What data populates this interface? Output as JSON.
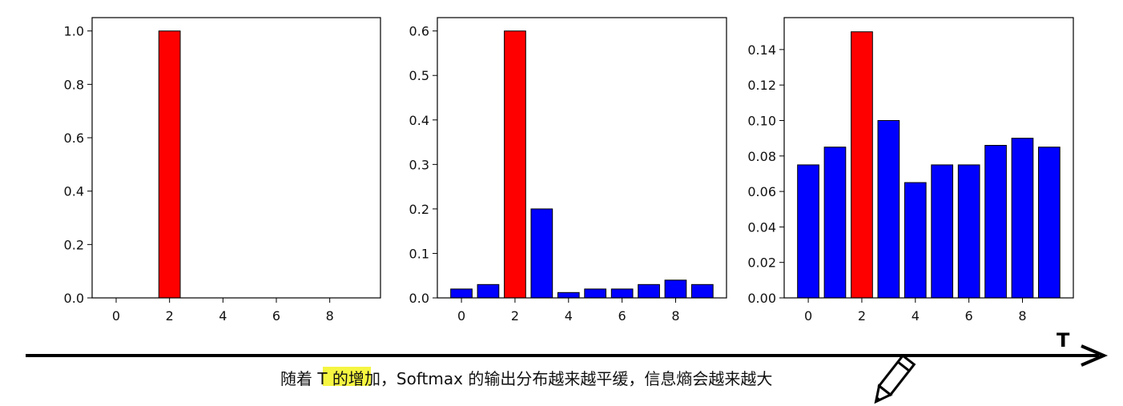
{
  "chart_data": [
    {
      "type": "bar",
      "x": [
        0,
        1,
        2,
        3,
        4,
        5,
        6,
        7,
        8,
        9
      ],
      "values": [
        0,
        0,
        1.0,
        0,
        0,
        0,
        0,
        0,
        0,
        0
      ],
      "highlight_index": 2,
      "xticks": [
        "0",
        "2",
        "4",
        "6",
        "8"
      ],
      "yticks": [
        "0.0",
        "0.2",
        "0.4",
        "0.6",
        "0.8",
        "1.0"
      ],
      "ytick_values": [
        0,
        0.2,
        0.4,
        0.6,
        0.8,
        1.0
      ],
      "xlim": [
        -0.9,
        9.9
      ],
      "ylim": [
        0,
        1.05
      ],
      "grid": false
    },
    {
      "type": "bar",
      "x": [
        0,
        1,
        2,
        3,
        4,
        5,
        6,
        7,
        8,
        9
      ],
      "values": [
        0.02,
        0.03,
        0.6,
        0.2,
        0.012,
        0.02,
        0.02,
        0.03,
        0.04,
        0.03
      ],
      "highlight_index": 2,
      "xticks": [
        "0",
        "2",
        "4",
        "6",
        "8"
      ],
      "yticks": [
        "0.0",
        "0.1",
        "0.2",
        "0.3",
        "0.4",
        "0.5",
        "0.6"
      ],
      "ytick_values": [
        0,
        0.1,
        0.2,
        0.3,
        0.4,
        0.5,
        0.6
      ],
      "xlim": [
        -0.9,
        9.9
      ],
      "ylim": [
        0,
        0.63
      ],
      "grid": false
    },
    {
      "type": "bar",
      "x": [
        0,
        1,
        2,
        3,
        4,
        5,
        6,
        7,
        8,
        9
      ],
      "values": [
        0.075,
        0.085,
        0.15,
        0.1,
        0.065,
        0.075,
        0.075,
        0.086,
        0.09,
        0.085
      ],
      "highlight_index": 2,
      "xticks": [
        "0",
        "2",
        "4",
        "6",
        "8"
      ],
      "yticks": [
        "0.00",
        "0.02",
        "0.04",
        "0.06",
        "0.08",
        "0.10",
        "0.12",
        "0.14"
      ],
      "ytick_values": [
        0,
        0.02,
        0.04,
        0.06,
        0.08,
        0.1,
        0.12,
        0.14
      ],
      "xlim": [
        -0.9,
        9.9
      ],
      "ylim": [
        0,
        0.158
      ],
      "grid": false
    }
  ],
  "colors": {
    "highlight": "#ff0000",
    "bar": "#0000ff",
    "caption_highlight": "#f5f542"
  },
  "arrow": {
    "label": "T"
  },
  "caption": {
    "before": "随着 ",
    "highlighted": "T 的增",
    "after": "加，Softmax 的输出分布越来越平缓，信息熵会越来越大"
  },
  "icons": {
    "pencil": "pencil-icon"
  }
}
